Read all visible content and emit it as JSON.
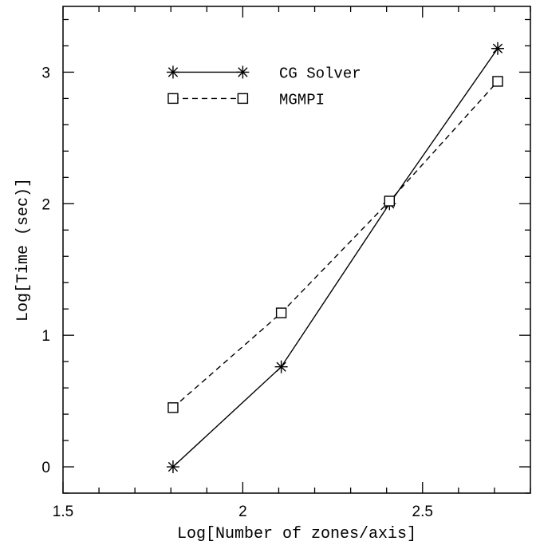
{
  "chart_data": {
    "type": "line",
    "xlabel": "Log[Number of zones/axis]",
    "ylabel": "Log[Time (sec)]",
    "xlim": [
      1.5,
      2.8
    ],
    "ylim": [
      -0.2,
      3.5
    ],
    "x_ticks": [
      1.5,
      2,
      2.5
    ],
    "x_tick_labels": [
      "1.5",
      "2",
      "2.5"
    ],
    "y_ticks": [
      0,
      1,
      2,
      3
    ],
    "y_tick_labels": [
      "0",
      "1",
      "2",
      "3"
    ],
    "grid": false,
    "legend_position": "top-left",
    "series": [
      {
        "name": "CG Solver",
        "marker": "asterisk",
        "line_style": "solid",
        "color": "#000000",
        "x": [
          1.806,
          2.107,
          2.408,
          2.709
        ],
        "y": [
          0.0,
          0.76,
          2.0,
          3.18
        ]
      },
      {
        "name": "MGMPI",
        "marker": "square",
        "line_style": "dashed",
        "color": "#000000",
        "x": [
          1.806,
          2.107,
          2.408,
          2.709
        ],
        "y": [
          0.45,
          1.17,
          2.02,
          2.93
        ]
      }
    ]
  }
}
